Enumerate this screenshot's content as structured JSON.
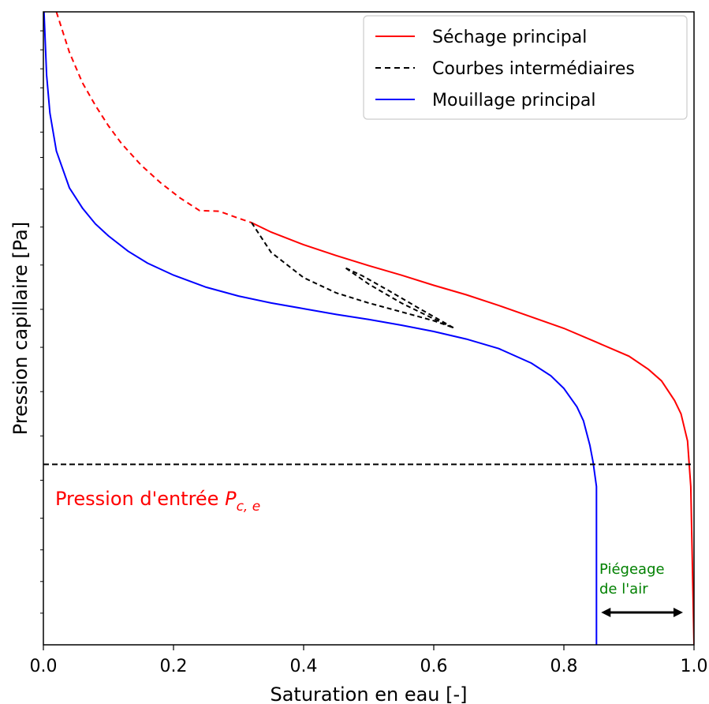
{
  "chart_data": {
    "type": "line",
    "xlabel": "Saturation en eau [-]",
    "ylabel": "Pression capillaire [Pa]",
    "xlim": [
      0.0,
      1.0
    ],
    "y_scale": "log",
    "y_tick_labels_shown": false,
    "x_ticks": [
      "0.0",
      "0.2",
      "0.4",
      "0.6",
      "0.8",
      "1.0"
    ],
    "grid": false,
    "legend_position": "top-right",
    "series": [
      {
        "name": "Séchage principal",
        "color": "#ff0000",
        "style": "solid",
        "note_dashed_part": "dashed for x < 0.32",
        "points": [
          [
            0.02,
            1.0
          ],
          [
            0.04,
            0.936
          ],
          [
            0.06,
            0.888
          ],
          [
            0.08,
            0.852
          ],
          [
            0.1,
            0.82
          ],
          [
            0.12,
            0.792
          ],
          [
            0.15,
            0.758
          ],
          [
            0.18,
            0.73
          ],
          [
            0.21,
            0.706
          ],
          [
            0.24,
            0.686
          ],
          [
            0.27,
            0.685
          ],
          [
            0.3,
            0.674
          ],
          [
            0.32,
            0.667
          ],
          [
            0.35,
            0.652
          ],
          [
            0.4,
            0.632
          ],
          [
            0.45,
            0.615
          ],
          [
            0.5,
            0.599
          ],
          [
            0.55,
            0.584
          ],
          [
            0.6,
            0.568
          ],
          [
            0.65,
            0.553
          ],
          [
            0.7,
            0.536
          ],
          [
            0.75,
            0.518
          ],
          [
            0.8,
            0.5
          ],
          [
            0.85,
            0.478
          ],
          [
            0.9,
            0.456
          ],
          [
            0.93,
            0.435
          ],
          [
            0.95,
            0.417
          ],
          [
            0.97,
            0.386
          ],
          [
            0.98,
            0.365
          ],
          [
            0.99,
            0.322
          ],
          [
            0.995,
            0.25
          ],
          [
            1.0,
            0.0
          ]
        ]
      },
      {
        "name": "Courbes intermédiaires",
        "color": "#000000",
        "style": "dashed",
        "segments": [
          [
            [
              0.32,
              0.667
            ],
            [
              0.35,
              0.62
            ],
            [
              0.4,
              0.58
            ],
            [
              0.45,
              0.556
            ],
            [
              0.5,
              0.54
            ],
            [
              0.55,
              0.526
            ],
            [
              0.6,
              0.512
            ],
            [
              0.63,
              0.501
            ]
          ],
          [
            [
              0.63,
              0.501
            ],
            [
              0.58,
              0.53
            ],
            [
              0.53,
              0.56
            ],
            [
              0.49,
              0.583
            ],
            [
              0.465,
              0.595
            ]
          ],
          [
            [
              0.465,
              0.595
            ],
            [
              0.5,
              0.57
            ],
            [
              0.55,
              0.54
            ],
            [
              0.6,
              0.515
            ],
            [
              0.63,
              0.501
            ]
          ]
        ]
      },
      {
        "name": "Mouillage principal",
        "color": "#0000ff",
        "style": "solid",
        "points": [
          [
            0.001,
            1.0
          ],
          [
            0.005,
            0.9
          ],
          [
            0.01,
            0.84
          ],
          [
            0.02,
            0.78
          ],
          [
            0.04,
            0.722
          ],
          [
            0.06,
            0.69
          ],
          [
            0.08,
            0.665
          ],
          [
            0.1,
            0.646
          ],
          [
            0.13,
            0.622
          ],
          [
            0.16,
            0.603
          ],
          [
            0.2,
            0.584
          ],
          [
            0.25,
            0.565
          ],
          [
            0.3,
            0.551
          ],
          [
            0.35,
            0.54
          ],
          [
            0.4,
            0.531
          ],
          [
            0.45,
            0.522
          ],
          [
            0.5,
            0.514
          ],
          [
            0.55,
            0.505
          ],
          [
            0.6,
            0.495
          ],
          [
            0.65,
            0.483
          ],
          [
            0.7,
            0.468
          ],
          [
            0.75,
            0.445
          ],
          [
            0.78,
            0.425
          ],
          [
            0.8,
            0.405
          ],
          [
            0.82,
            0.376
          ],
          [
            0.83,
            0.354
          ],
          [
            0.84,
            0.315
          ],
          [
            0.845,
            0.288
          ],
          [
            0.85,
            0.25
          ],
          [
            0.85,
            0.0
          ]
        ]
      }
    ],
    "reference_line": {
      "label": "Pression d'entrée",
      "symbol": "P",
      "subscript": "c, e",
      "color": "#ff0000",
      "y": 0.285,
      "x_range": [
        0.0,
        1.0
      ],
      "style": "dashed",
      "line_color": "#000000"
    },
    "annotation_trapping": {
      "lines": [
        "Piégeage",
        "de l'air"
      ],
      "color": "#008000",
      "arrow_from_x": 0.85,
      "arrow_to_x": 1.0,
      "arrow_color": "#000000"
    }
  }
}
